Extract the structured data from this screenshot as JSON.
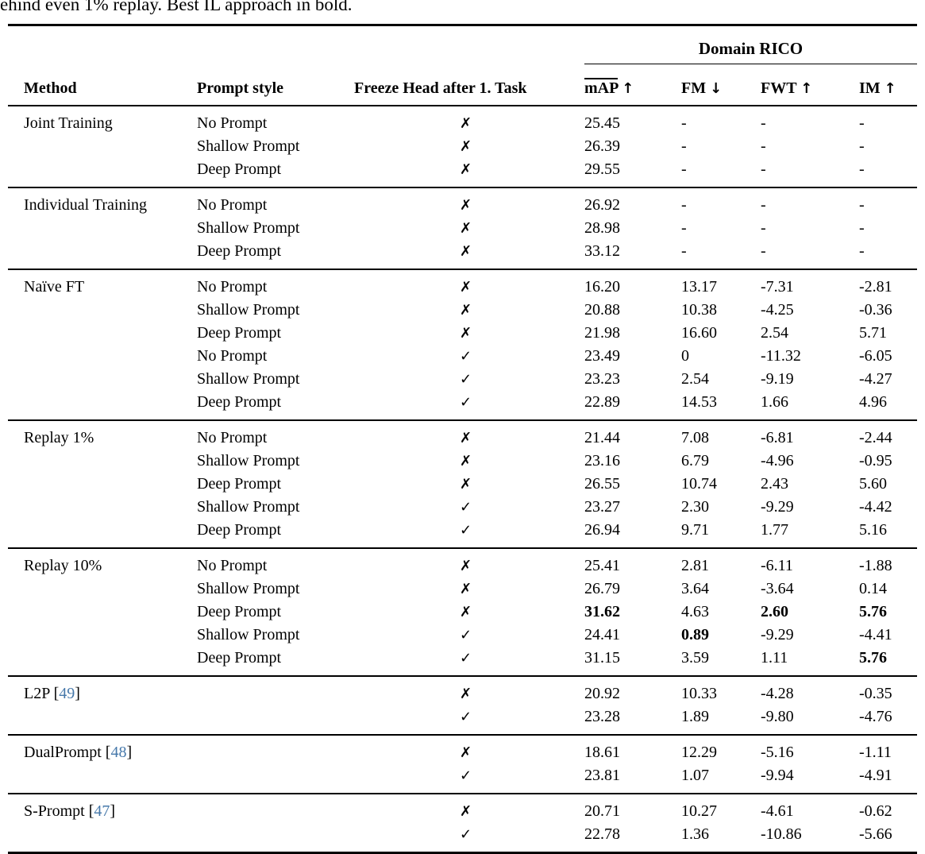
{
  "caption": "ehind even 1% replay. Best IL approach in bold.",
  "colors": {
    "citation_blue": "#4678aa",
    "text": "#000000",
    "background": "#ffffff"
  },
  "table": {
    "group_header": "Domain RICO",
    "plain_columns": {
      "method": "Method",
      "prompt": "Prompt style",
      "freeze": "Freeze Head after 1. Task"
    },
    "metric_columns": [
      {
        "label": "mAP",
        "arrow": "↑",
        "overline": true
      },
      {
        "label": "FM",
        "arrow": "↓",
        "overline": false
      },
      {
        "label": "FWT",
        "arrow": "↑",
        "overline": false
      },
      {
        "label": "IM",
        "arrow": "↑",
        "overline": false
      }
    ],
    "check_glyph": "✓",
    "cross_glyph": "✗",
    "sections": [
      {
        "method": "Joint Training",
        "citation": null,
        "rows": [
          {
            "prompt": "No Prompt",
            "freeze": false,
            "values": [
              "25.45",
              "-",
              "-",
              "-"
            ],
            "bold": []
          },
          {
            "prompt": "Shallow Prompt",
            "freeze": false,
            "values": [
              "26.39",
              "-",
              "-",
              "-"
            ],
            "bold": []
          },
          {
            "prompt": "Deep Prompt",
            "freeze": false,
            "values": [
              "29.55",
              "-",
              "-",
              "-"
            ],
            "bold": []
          }
        ]
      },
      {
        "method": "Individual Training",
        "citation": null,
        "rows": [
          {
            "prompt": "No Prompt",
            "freeze": false,
            "values": [
              "26.92",
              "-",
              "-",
              "-"
            ],
            "bold": []
          },
          {
            "prompt": "Shallow Prompt",
            "freeze": false,
            "values": [
              "28.98",
              "-",
              "-",
              "-"
            ],
            "bold": []
          },
          {
            "prompt": "Deep Prompt",
            "freeze": false,
            "values": [
              "33.12",
              "-",
              "-",
              "-"
            ],
            "bold": []
          }
        ]
      },
      {
        "method": "Naïve FT",
        "citation": null,
        "rows": [
          {
            "prompt": "No Prompt",
            "freeze": false,
            "values": [
              "16.20",
              "13.17",
              "-7.31",
              "-2.81"
            ],
            "bold": []
          },
          {
            "prompt": "Shallow Prompt",
            "freeze": false,
            "values": [
              "20.88",
              "10.38",
              "-4.25",
              "-0.36"
            ],
            "bold": []
          },
          {
            "prompt": "Deep Prompt",
            "freeze": false,
            "values": [
              "21.98",
              "16.60",
              "2.54",
              "5.71"
            ],
            "bold": []
          },
          {
            "prompt": "No Prompt",
            "freeze": true,
            "values": [
              "23.49",
              "0",
              "-11.32",
              "-6.05"
            ],
            "bold": []
          },
          {
            "prompt": "Shallow Prompt",
            "freeze": true,
            "values": [
              "23.23",
              "2.54",
              "-9.19",
              "-4.27"
            ],
            "bold": []
          },
          {
            "prompt": "Deep Prompt",
            "freeze": true,
            "values": [
              "22.89",
              "14.53",
              "1.66",
              "4.96"
            ],
            "bold": []
          }
        ]
      },
      {
        "method": "Replay 1%",
        "citation": null,
        "rows": [
          {
            "prompt": "No Prompt",
            "freeze": false,
            "values": [
              "21.44",
              "7.08",
              "-6.81",
              "-2.44"
            ],
            "bold": []
          },
          {
            "prompt": "Shallow Prompt",
            "freeze": false,
            "values": [
              "23.16",
              "6.79",
              "-4.96",
              "-0.95"
            ],
            "bold": []
          },
          {
            "prompt": "Deep Prompt",
            "freeze": false,
            "values": [
              "26.55",
              "10.74",
              "2.43",
              "5.60"
            ],
            "bold": []
          },
          {
            "prompt": "Shallow Prompt",
            "freeze": true,
            "values": [
              "23.27",
              "2.30",
              "-9.29",
              "-4.42"
            ],
            "bold": []
          },
          {
            "prompt": "Deep Prompt",
            "freeze": true,
            "values": [
              "26.94",
              "9.71",
              "1.77",
              "5.16"
            ],
            "bold": []
          }
        ]
      },
      {
        "method": "Replay 10%",
        "citation": null,
        "rows": [
          {
            "prompt": "No Prompt",
            "freeze": false,
            "values": [
              "25.41",
              "2.81",
              "-6.11",
              "-1.88"
            ],
            "bold": []
          },
          {
            "prompt": "Shallow Prompt",
            "freeze": false,
            "values": [
              "26.79",
              "3.64",
              "-3.64",
              "0.14"
            ],
            "bold": []
          },
          {
            "prompt": "Deep Prompt",
            "freeze": false,
            "values": [
              "31.62",
              "4.63",
              "2.60",
              "5.76"
            ],
            "bold": [
              0,
              2,
              3
            ]
          },
          {
            "prompt": "Shallow Prompt",
            "freeze": true,
            "values": [
              "24.41",
              "0.89",
              "-9.29",
              "-4.41"
            ],
            "bold": [
              1
            ]
          },
          {
            "prompt": "Deep Prompt",
            "freeze": true,
            "values": [
              "31.15",
              "3.59",
              "1.11",
              "5.76"
            ],
            "bold": [
              3
            ]
          }
        ]
      },
      {
        "method": "L2P",
        "citation": "49",
        "rows": [
          {
            "prompt": "",
            "freeze": false,
            "values": [
              "20.92",
              "10.33",
              "-4.28",
              "-0.35"
            ],
            "bold": []
          },
          {
            "prompt": "",
            "freeze": true,
            "values": [
              "23.28",
              "1.89",
              "-9.80",
              "-4.76"
            ],
            "bold": []
          }
        ]
      },
      {
        "method": "DualPrompt",
        "citation": "48",
        "rows": [
          {
            "prompt": "",
            "freeze": false,
            "values": [
              "18.61",
              "12.29",
              "-5.16",
              "-1.11"
            ],
            "bold": []
          },
          {
            "prompt": "",
            "freeze": true,
            "values": [
              "23.81",
              "1.07",
              "-9.94",
              "-4.91"
            ],
            "bold": []
          }
        ]
      },
      {
        "method": "S-Prompt",
        "citation": "47",
        "rows": [
          {
            "prompt": "",
            "freeze": false,
            "values": [
              "20.71",
              "10.27",
              "-4.61",
              "-0.62"
            ],
            "bold": []
          },
          {
            "prompt": "",
            "freeze": true,
            "values": [
              "22.78",
              "1.36",
              "-10.86",
              "-5.66"
            ],
            "bold": []
          }
        ]
      }
    ]
  }
}
